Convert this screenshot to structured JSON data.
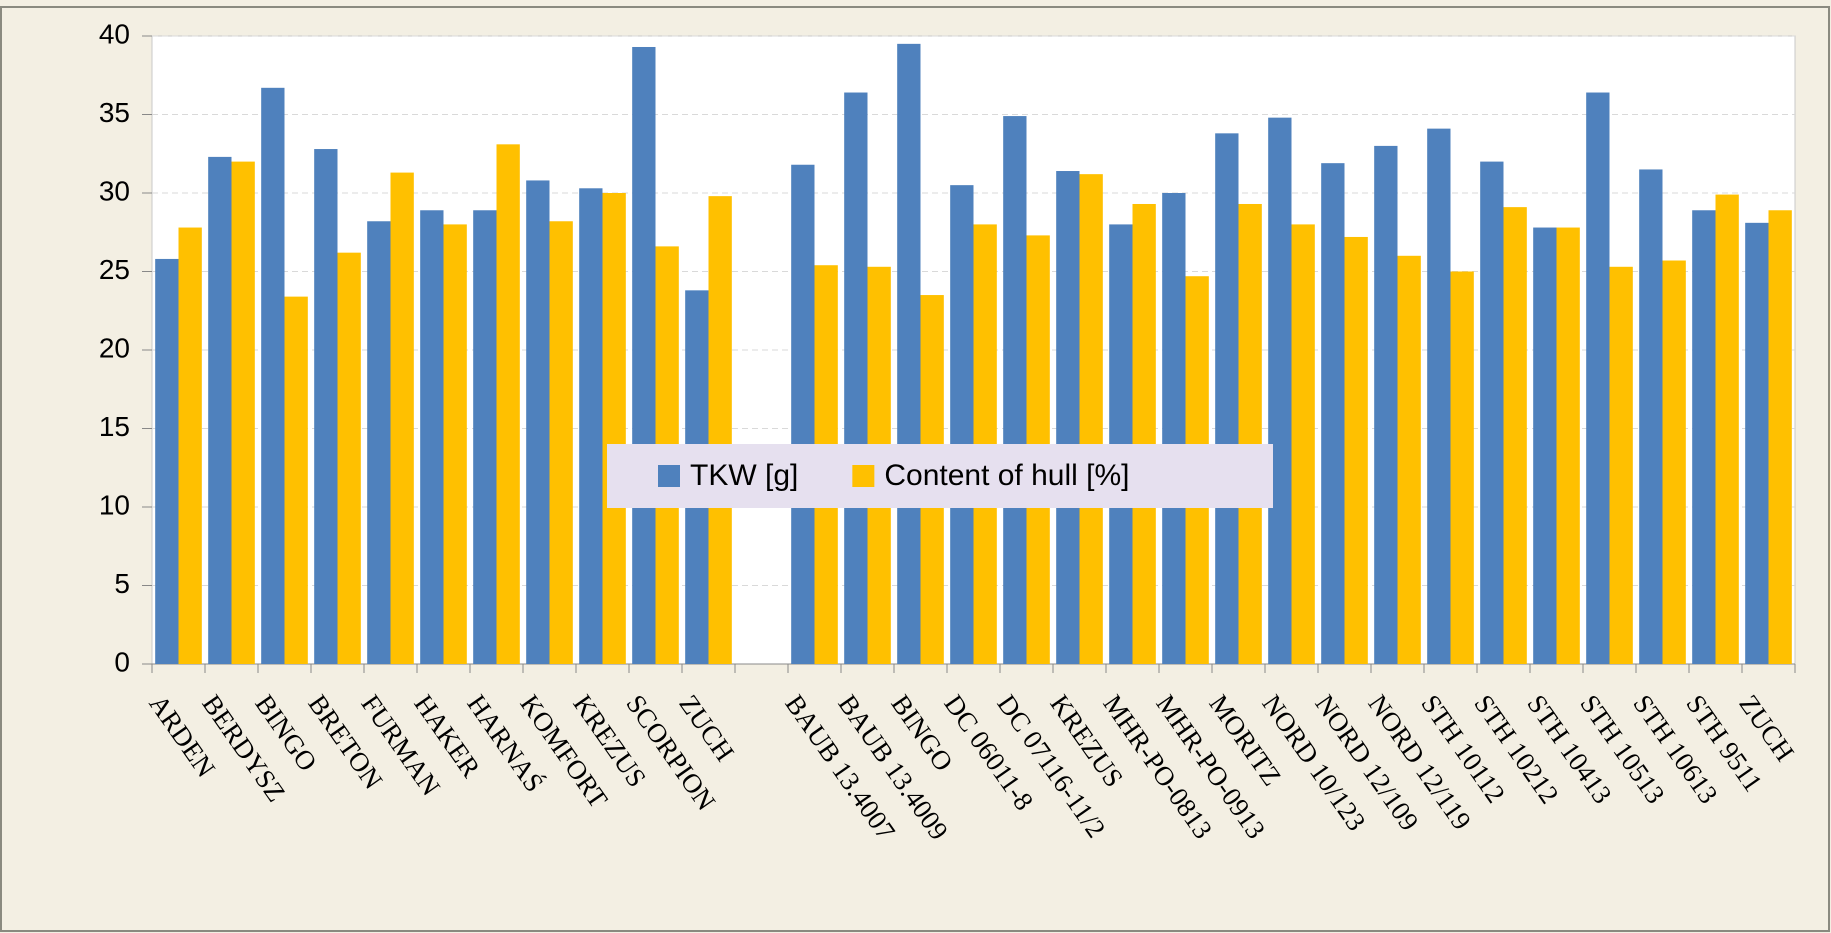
{
  "chart_data": {
    "type": "bar",
    "categories": [
      "ARDEN",
      "BERDYSZ",
      "BINGO",
      "BRETON",
      "FURMAN",
      "HAKER",
      "HARNAŚ",
      "KOMFORT",
      "KREZUS",
      "SCORPION",
      "ZUCH",
      null,
      "BAUB 13.4007",
      "BAUB 13.4009",
      "BINGO",
      "DC 06011-8",
      "DC 07116-11/2",
      "KREZUS",
      "MHR-PO-0813",
      "MHR-PO-0913",
      "MORITZ",
      "NORD 10/123",
      "NORD 12/109",
      "NORD 12/119",
      "STH 10112",
      "STH 10212",
      "STH 10413",
      "STH 10513",
      "STH 10613",
      "STH 9511",
      "ZUCH"
    ],
    "series": [
      {
        "name": "TKW [g]",
        "color": "#4f81bd",
        "values": [
          25.8,
          32.3,
          36.7,
          32.8,
          28.2,
          28.9,
          28.9,
          30.8,
          30.3,
          39.3,
          23.8,
          null,
          31.8,
          36.4,
          39.5,
          30.5,
          34.9,
          31.4,
          28.0,
          30.0,
          33.8,
          34.8,
          31.9,
          33.0,
          34.1,
          32.0,
          27.8,
          36.4,
          31.5,
          28.9,
          28.1
        ]
      },
      {
        "name": "Content of hull [%]",
        "color": "#ffc000",
        "values": [
          27.8,
          32.0,
          23.4,
          26.2,
          31.3,
          28.0,
          33.1,
          28.2,
          30.0,
          26.6,
          29.8,
          null,
          25.4,
          25.3,
          23.5,
          28.0,
          27.3,
          31.2,
          29.3,
          24.7,
          29.3,
          28.0,
          27.2,
          26.0,
          25.0,
          29.1,
          27.8,
          25.3,
          25.7,
          29.9,
          28.9
        ]
      }
    ],
    "ylim": [
      0,
      40
    ],
    "yticks": [
      0,
      5,
      10,
      15,
      20,
      25,
      30,
      35,
      40
    ],
    "grid": true,
    "legend": "center"
  }
}
